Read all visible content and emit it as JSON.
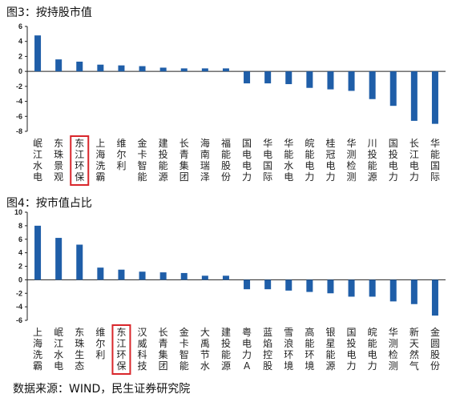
{
  "source": "数据来源：WIND，民生证券研究院",
  "colors": {
    "bar": "#1f5ea8",
    "highlight": "#d9262b"
  },
  "chart_data": [
    {
      "type": "bar",
      "title": "图3：按持股市值",
      "highlight": "东江环保",
      "ylim": [
        -8,
        6
      ],
      "yticks": [
        -8,
        -6,
        -4,
        -2,
        0,
        2,
        4,
        6
      ],
      "categories": [
        "岷江水电",
        "东珠景观",
        "东江环保",
        "上海洗霸",
        "维尔利",
        "金卡智能",
        "建投能源",
        "长青集团",
        "海南瑞泽",
        "福能股份",
        "国电电力",
        "华电国际",
        "华能水电",
        "皖能电力",
        "桂冠电力",
        "华测检测",
        "川投能源",
        "国投电力",
        "长江电力",
        "华能国际"
      ],
      "values": [
        4.8,
        1.6,
        1.3,
        0.9,
        0.8,
        0.7,
        0.5,
        0.4,
        0.4,
        0.4,
        -1.6,
        -1.6,
        -1.7,
        -2.2,
        -2.4,
        -2.6,
        -3.7,
        -4.6,
        -6.6,
        -7.0
      ]
    },
    {
      "type": "bar",
      "title": "图4：按市值占比",
      "highlight": "东江环保",
      "ylim": [
        -6,
        10
      ],
      "yticks": [
        -6,
        -4,
        -2,
        0,
        2,
        4,
        6,
        8,
        10
      ],
      "categories": [
        "上海洗霸",
        "岷江水电",
        "东珠生态",
        "维尔利",
        "东江环保",
        "汉威科技",
        "长青集团",
        "金卡智能",
        "大禹节水",
        "建投能源",
        "粤电力A",
        "蓝焰控股",
        "雪浪环境",
        "高能环境",
        "银星能源",
        "国投电力",
        "皖能电力",
        "华测检测",
        "新天然气",
        "金圆股份"
      ],
      "values": [
        8.0,
        6.2,
        5.2,
        1.8,
        1.5,
        1.2,
        1.1,
        1.0,
        0.6,
        0.6,
        -1.4,
        -1.4,
        -1.6,
        -1.8,
        -2.0,
        -2.5,
        -2.5,
        -3.2,
        -3.6,
        -5.3
      ]
    }
  ]
}
